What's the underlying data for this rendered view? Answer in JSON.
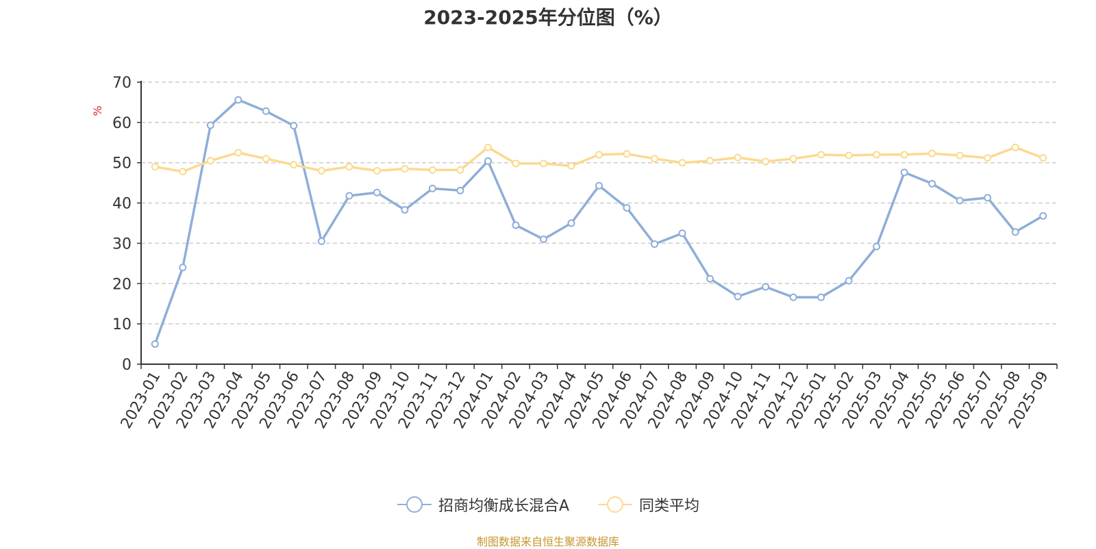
{
  "chart_data": {
    "type": "line",
    "title": "2023-2025年分位图（%）",
    "ylabel": "%",
    "xlabel": "",
    "ylim": [
      0,
      70
    ],
    "yticks": [
      0,
      10,
      20,
      30,
      40,
      50,
      60,
      70
    ],
    "grid": true,
    "legend_position": "bottom-center",
    "categories": [
      "2023-01",
      "2023-02",
      "2023-03",
      "2023-04",
      "2023-05",
      "2023-06",
      "2023-07",
      "2023-08",
      "2023-09",
      "2023-10",
      "2023-11",
      "2023-12",
      "2024-01",
      "2024-02",
      "2024-03",
      "2024-04",
      "2024-05",
      "2024-06",
      "2024-07",
      "2024-08",
      "2024-09",
      "2024-10",
      "2024-11",
      "2024-12",
      "2025-01",
      "2025-02",
      "2025-03",
      "2025-04",
      "2025-05",
      "2025-06",
      "2025-07",
      "2025-08",
      "2025-09"
    ],
    "series": [
      {
        "name": "招商均衡成长混合A",
        "color": "#8eaed8",
        "values": [
          5.0,
          24.0,
          59.3,
          65.6,
          62.8,
          59.2,
          30.5,
          41.8,
          42.6,
          38.3,
          43.6,
          43.1,
          50.4,
          34.5,
          31.0,
          35.0,
          44.3,
          38.8,
          29.8,
          32.5,
          21.2,
          16.8,
          19.2,
          16.6,
          16.6,
          20.7,
          29.2,
          47.6,
          44.8,
          40.6,
          41.3,
          32.8,
          36.8
        ]
      },
      {
        "name": "同类平均",
        "color": "#fcd98e",
        "values": [
          49.0,
          47.8,
          50.5,
          52.5,
          51.0,
          49.5,
          48.0,
          49.0,
          48.0,
          48.5,
          48.2,
          48.2,
          53.8,
          49.8,
          49.8,
          49.2,
          52.0,
          52.2,
          51.0,
          50.0,
          50.5,
          51.3,
          50.3,
          51.0,
          52.0,
          51.8,
          52.0,
          52.0,
          52.3,
          51.8,
          51.2,
          53.8,
          51.2
        ]
      }
    ]
  },
  "source_text": "制图数据来自恒生聚源数据库"
}
